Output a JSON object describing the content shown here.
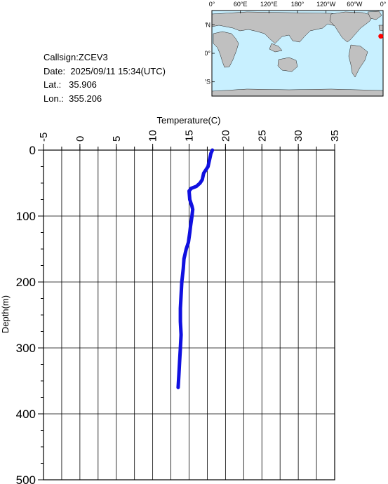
{
  "info": {
    "callsign_label": "Callsign:",
    "callsign": "ZCEV3",
    "date_label": "Date:",
    "date": "2025/09/11 15:34(UTC)",
    "lat_label": "Lat.:",
    "lat": "35.906",
    "lon_label": "Lon.:",
    "lon": "355.206"
  },
  "map": {
    "lon_ticks": [
      "0°",
      "60°E",
      "120°E",
      "180°",
      "120°W",
      "60°W",
      "0°"
    ],
    "lat_ticks": [
      "60°N",
      "0°",
      "60°S"
    ],
    "ocean_color": "#c8f0ff",
    "land_color": "#c0c0c0",
    "marker_color": "#ff0000",
    "marker_lat": 35.906,
    "marker_lon": 355.206
  },
  "chart_data": {
    "type": "line",
    "title": "",
    "xlabel": "Temperature(C)",
    "ylabel": "Depth(m)",
    "xlim": [
      -5,
      35
    ],
    "ylim": [
      0,
      500
    ],
    "x_ticks": [
      -5,
      0,
      5,
      10,
      15,
      20,
      25,
      30,
      35
    ],
    "y_ticks": [
      0,
      100,
      200,
      300,
      400,
      500
    ],
    "grid": true,
    "line_color": "#1010e0",
    "series": [
      {
        "x": [
          18.2,
          18.0,
          17.9,
          17.7,
          17.6,
          17.3,
          17.0,
          16.8,
          16.5,
          16.0,
          15.3,
          15.0,
          15.1,
          15.4,
          15.5,
          15.4,
          15.2,
          15.1,
          14.9,
          14.6,
          14.3,
          14.2,
          14.0,
          13.9,
          13.8,
          13.8,
          13.9,
          13.8,
          13.7,
          13.6,
          13.5
        ],
        "y": [
          0,
          5,
          10,
          20,
          25,
          30,
          35,
          45,
          50,
          55,
          58,
          62,
          75,
          85,
          90,
          100,
          115,
          125,
          140,
          150,
          165,
          180,
          200,
          220,
          240,
          260,
          280,
          300,
          320,
          340,
          360
        ]
      }
    ]
  }
}
